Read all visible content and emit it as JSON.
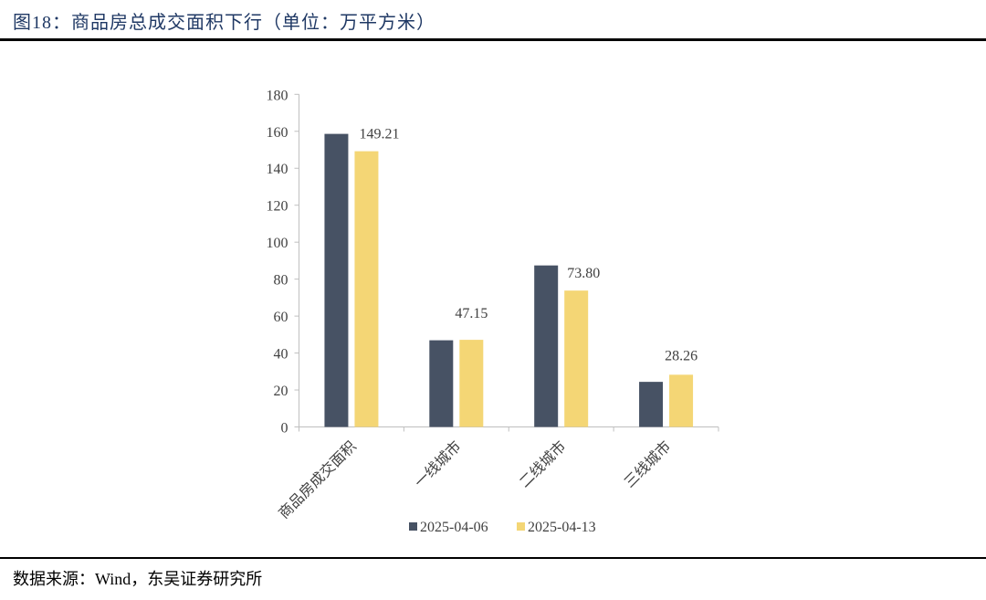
{
  "header": {
    "title": "图18：商品房总成交面积下行（单位：万平方米）"
  },
  "footer": {
    "source": "数据来源：Wind，东吴证券研究所"
  },
  "chart_data": {
    "type": "bar",
    "title": "",
    "categories": [
      "商品房成交面积",
      "一线城市",
      "二线城市",
      "三线城市"
    ],
    "series": [
      {
        "name": "2025-04-06",
        "values": [
          158.6,
          46.9,
          87.4,
          24.4
        ],
        "color": "#475264"
      },
      {
        "name": "2025-04-13",
        "values": [
          149.21,
          47.15,
          73.8,
          28.26
        ],
        "color": "#f4d675",
        "labels": [
          "149.21",
          "47.15",
          "73.80",
          "28.26"
        ]
      }
    ],
    "ylim": [
      0,
      180
    ],
    "yticks": [
      0,
      20,
      40,
      60,
      80,
      100,
      120,
      140,
      160,
      180
    ],
    "grid": false,
    "legend": "bottom"
  }
}
